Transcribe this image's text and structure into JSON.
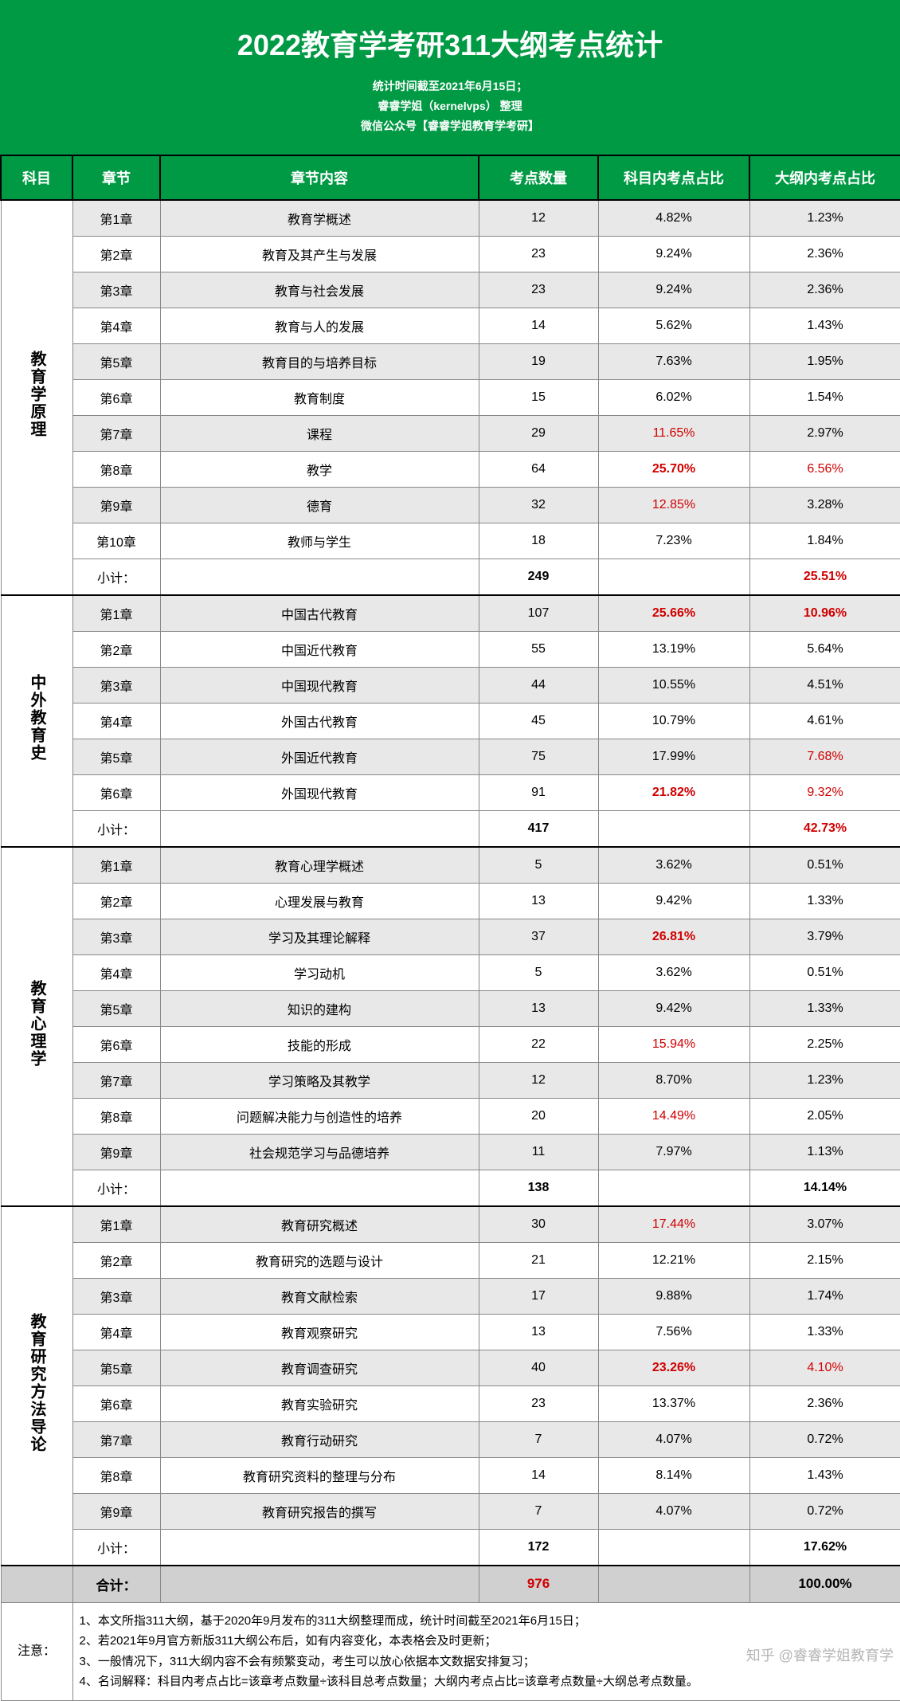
{
  "header": {
    "title": "2022教育学考研311大纲考点统计",
    "subline1": "统计时间截至2021年6月15日；",
    "subline2": "睿睿学姐（kernelvps）  整理",
    "subline3": "微信公众号【睿睿学姐教育学考研】"
  },
  "columns": {
    "subject": "科目",
    "chapter": "章节",
    "content": "章节内容",
    "count": "考点数量",
    "pct_subject": "科目内考点占比",
    "pct_outline": "大纲内考点占比"
  },
  "colors": {
    "header_bg": "#009944",
    "header_fg": "#ffffff",
    "alt_row": "#e8e8e8",
    "grand_row": "#d0d0d0",
    "highlight": "#d00000",
    "border": "#888888",
    "thick_border": "#000000"
  },
  "sections": [
    {
      "subject": "教育学原理",
      "rows": [
        {
          "chapter": "第1章",
          "content": "教育学概述",
          "count": "12",
          "p1": "4.82%",
          "p2": "1.23%",
          "p1_red": false,
          "p2_red": false
        },
        {
          "chapter": "第2章",
          "content": "教育及其产生与发展",
          "count": "23",
          "p1": "9.24%",
          "p2": "2.36%",
          "p1_red": false,
          "p2_red": false
        },
        {
          "chapter": "第3章",
          "content": "教育与社会发展",
          "count": "23",
          "p1": "9.24%",
          "p2": "2.36%",
          "p1_red": false,
          "p2_red": false
        },
        {
          "chapter": "第4章",
          "content": "教育与人的发展",
          "count": "14",
          "p1": "5.62%",
          "p2": "1.43%",
          "p1_red": false,
          "p2_red": false
        },
        {
          "chapter": "第5章",
          "content": "教育目的与培养目标",
          "count": "19",
          "p1": "7.63%",
          "p2": "1.95%",
          "p1_red": false,
          "p2_red": false
        },
        {
          "chapter": "第6章",
          "content": "教育制度",
          "count": "15",
          "p1": "6.02%",
          "p2": "1.54%",
          "p1_red": false,
          "p2_red": false
        },
        {
          "chapter": "第7章",
          "content": "课程",
          "count": "29",
          "p1": "11.65%",
          "p2": "2.97%",
          "p1_red": true,
          "p2_red": false
        },
        {
          "chapter": "第8章",
          "content": "教学",
          "count": "64",
          "p1": "25.70%",
          "p2": "6.56%",
          "p1_red": true,
          "p2_red": true,
          "p1_bold": true
        },
        {
          "chapter": "第9章",
          "content": "德育",
          "count": "32",
          "p1": "12.85%",
          "p2": "3.28%",
          "p1_red": true,
          "p2_red": false
        },
        {
          "chapter": "第10章",
          "content": "教师与学生",
          "count": "18",
          "p1": "7.23%",
          "p2": "1.84%",
          "p1_red": false,
          "p2_red": false
        }
      ],
      "subtotal": {
        "label": "小计：",
        "count": "249",
        "p1": "",
        "p2": "25.51%",
        "p2_red": true,
        "p2_bold": true
      }
    },
    {
      "subject": "中外教育史",
      "rows": [
        {
          "chapter": "第1章",
          "content": "中国古代教育",
          "count": "107",
          "p1": "25.66%",
          "p2": "10.96%",
          "p1_red": true,
          "p2_red": true,
          "p1_bold": true,
          "p2_bold": true
        },
        {
          "chapter": "第2章",
          "content": "中国近代教育",
          "count": "55",
          "p1": "13.19%",
          "p2": "5.64%",
          "p1_red": false,
          "p2_red": false
        },
        {
          "chapter": "第3章",
          "content": "中国现代教育",
          "count": "44",
          "p1": "10.55%",
          "p2": "4.51%",
          "p1_red": false,
          "p2_red": false
        },
        {
          "chapter": "第4章",
          "content": "外国古代教育",
          "count": "45",
          "p1": "10.79%",
          "p2": "4.61%",
          "p1_red": false,
          "p2_red": false
        },
        {
          "chapter": "第5章",
          "content": "外国近代教育",
          "count": "75",
          "p1": "17.99%",
          "p2": "7.68%",
          "p1_red": false,
          "p2_red": true
        },
        {
          "chapter": "第6章",
          "content": "外国现代教育",
          "count": "91",
          "p1": "21.82%",
          "p2": "9.32%",
          "p1_red": true,
          "p2_red": true,
          "p1_bold": true
        }
      ],
      "subtotal": {
        "label": "小计：",
        "count": "417",
        "p1": "",
        "p2": "42.73%",
        "p2_red": true,
        "p2_bold": true
      }
    },
    {
      "subject": "教育心理学",
      "rows": [
        {
          "chapter": "第1章",
          "content": "教育心理学概述",
          "count": "5",
          "p1": "3.62%",
          "p2": "0.51%",
          "p1_red": false,
          "p2_red": false
        },
        {
          "chapter": "第2章",
          "content": "心理发展与教育",
          "count": "13",
          "p1": "9.42%",
          "p2": "1.33%",
          "p1_red": false,
          "p2_red": false
        },
        {
          "chapter": "第3章",
          "content": "学习及其理论解释",
          "count": "37",
          "p1": "26.81%",
          "p2": "3.79%",
          "p1_red": true,
          "p2_red": false,
          "p1_bold": true
        },
        {
          "chapter": "第4章",
          "content": "学习动机",
          "count": "5",
          "p1": "3.62%",
          "p2": "0.51%",
          "p1_red": false,
          "p2_red": false
        },
        {
          "chapter": "第5章",
          "content": "知识的建构",
          "count": "13",
          "p1": "9.42%",
          "p2": "1.33%",
          "p1_red": false,
          "p2_red": false
        },
        {
          "chapter": "第6章",
          "content": "技能的形成",
          "count": "22",
          "p1": "15.94%",
          "p2": "2.25%",
          "p1_red": true,
          "p2_red": false
        },
        {
          "chapter": "第7章",
          "content": "学习策略及其教学",
          "count": "12",
          "p1": "8.70%",
          "p2": "1.23%",
          "p1_red": false,
          "p2_red": false
        },
        {
          "chapter": "第8章",
          "content": "问题解决能力与创造性的培养",
          "count": "20",
          "p1": "14.49%",
          "p2": "2.05%",
          "p1_red": true,
          "p2_red": false
        },
        {
          "chapter": "第9章",
          "content": "社会规范学习与品德培养",
          "count": "11",
          "p1": "7.97%",
          "p2": "1.13%",
          "p1_red": false,
          "p2_red": false
        }
      ],
      "subtotal": {
        "label": "小计：",
        "count": "138",
        "p1": "",
        "p2": "14.14%",
        "p2_red": false
      }
    },
    {
      "subject": "教育研究方法导论",
      "rows": [
        {
          "chapter": "第1章",
          "content": "教育研究概述",
          "count": "30",
          "p1": "17.44%",
          "p2": "3.07%",
          "p1_red": true,
          "p2_red": false
        },
        {
          "chapter": "第2章",
          "content": "教育研究的选题与设计",
          "count": "21",
          "p1": "12.21%",
          "p2": "2.15%",
          "p1_red": false,
          "p2_red": false
        },
        {
          "chapter": "第3章",
          "content": "教育文献检索",
          "count": "17",
          "p1": "9.88%",
          "p2": "1.74%",
          "p1_red": false,
          "p2_red": false
        },
        {
          "chapter": "第4章",
          "content": "教育观察研究",
          "count": "13",
          "p1": "7.56%",
          "p2": "1.33%",
          "p1_red": false,
          "p2_red": false
        },
        {
          "chapter": "第5章",
          "content": "教育调查研究",
          "count": "40",
          "p1": "23.26%",
          "p2": "4.10%",
          "p1_red": true,
          "p2_red": true,
          "p1_bold": true
        },
        {
          "chapter": "第6章",
          "content": "教育实验研究",
          "count": "23",
          "p1": "13.37%",
          "p2": "2.36%",
          "p1_red": false,
          "p2_red": false
        },
        {
          "chapter": "第7章",
          "content": "教育行动研究",
          "count": "7",
          "p1": "4.07%",
          "p2": "0.72%",
          "p1_red": false,
          "p2_red": false
        },
        {
          "chapter": "第8章",
          "content": "教育研究资料的整理与分布",
          "count": "14",
          "p1": "8.14%",
          "p2": "1.43%",
          "p1_red": false,
          "p2_red": false
        },
        {
          "chapter": "第9章",
          "content": "教育研究报告的撰写",
          "count": "7",
          "p1": "4.07%",
          "p2": "0.72%",
          "p1_red": false,
          "p2_red": false
        }
      ],
      "subtotal": {
        "label": "小计：",
        "count": "172",
        "p1": "",
        "p2": "17.62%",
        "p2_red": false
      }
    }
  ],
  "grand": {
    "label": "合计：",
    "count": "976",
    "count_red": true,
    "p2": "100.00%"
  },
  "notes": {
    "label": "注意：",
    "lines": [
      "1、本文所指311大纲，基于2020年9月发布的311大纲整理而成，统计时间截至2021年6月15日；",
      "2、若2021年9月官方新版311大纲公布后，如有内容变化，本表格会及时更新；",
      "3、一般情况下，311大纲内容不会有频繁变动，考生可以放心依据本文数据安排复习；",
      "4、名词解释：科目内考点占比=该章考点数量÷该科目总考点数量；大纲内考点占比=该章考点数量÷大纲总考点数量。"
    ]
  },
  "watermark": "知乎 @睿睿学姐教育学"
}
